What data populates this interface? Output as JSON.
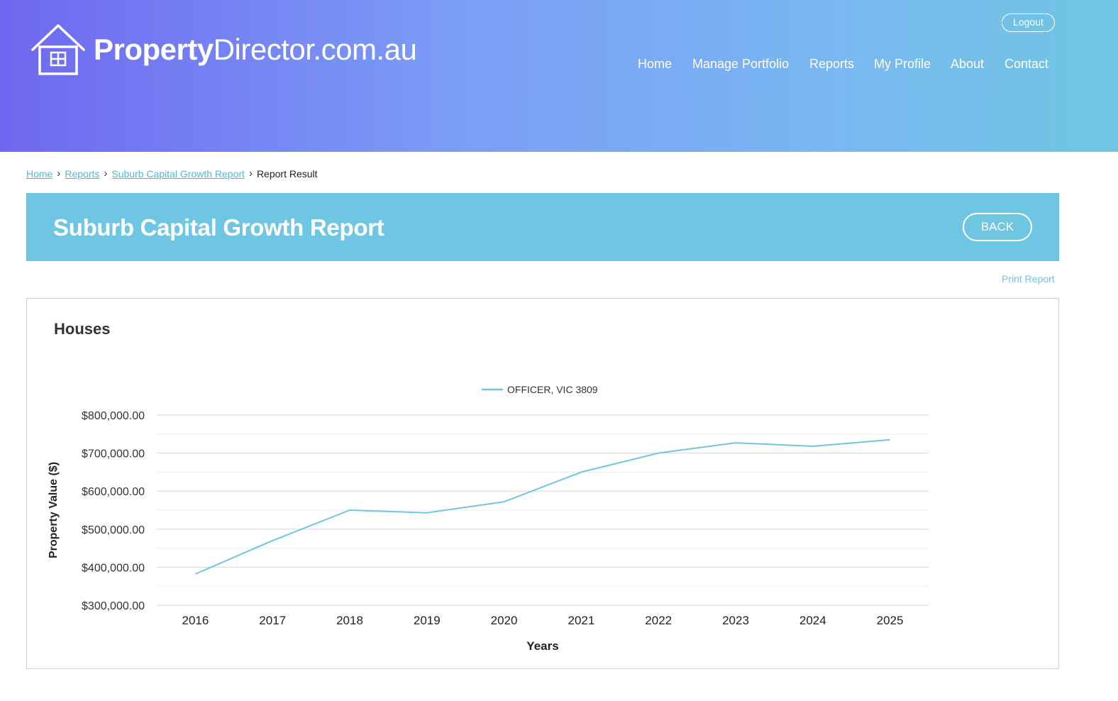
{
  "brand": {
    "name_bold": "Property",
    "name_rest": "Director.com.au"
  },
  "header": {
    "logout_label": "Logout"
  },
  "nav": [
    "Home",
    "Manage Portfolio",
    "Reports",
    "My Profile",
    "About",
    "Contact"
  ],
  "breadcrumb": {
    "items": [
      "Home",
      "Reports",
      "Suburb Capital Growth Report"
    ],
    "current": "Report Result"
  },
  "page": {
    "title": "Suburb Capital Growth Report",
    "back_label": "BACK",
    "print_label": "Print Report"
  },
  "panel": {
    "title": "Houses"
  },
  "colors": {
    "line": "#6ec6e2",
    "accent": "#6ec6e2"
  },
  "chart_data": {
    "type": "line",
    "x": [
      "2016",
      "2017",
      "2018",
      "2019",
      "2020",
      "2021",
      "2022",
      "2023",
      "2024",
      "2025"
    ],
    "series": [
      {
        "name": "OFFICER, VIC 3809",
        "values": [
          382000,
          470000,
          550000,
          543000,
          572000,
          650000,
          700000,
          727000,
          718000,
          735000
        ]
      }
    ],
    "ylim": [
      300000,
      800000
    ],
    "yticks": [
      "$300,000.00",
      "$400,000.00",
      "$500,000.00",
      "$600,000.00",
      "$700,000.00",
      "$800,000.00"
    ],
    "ytick_values": [
      300000,
      400000,
      500000,
      600000,
      700000,
      800000
    ],
    "xlabel": "Years",
    "ylabel": "Property Value ($)",
    "legend": "top",
    "grid": true
  }
}
